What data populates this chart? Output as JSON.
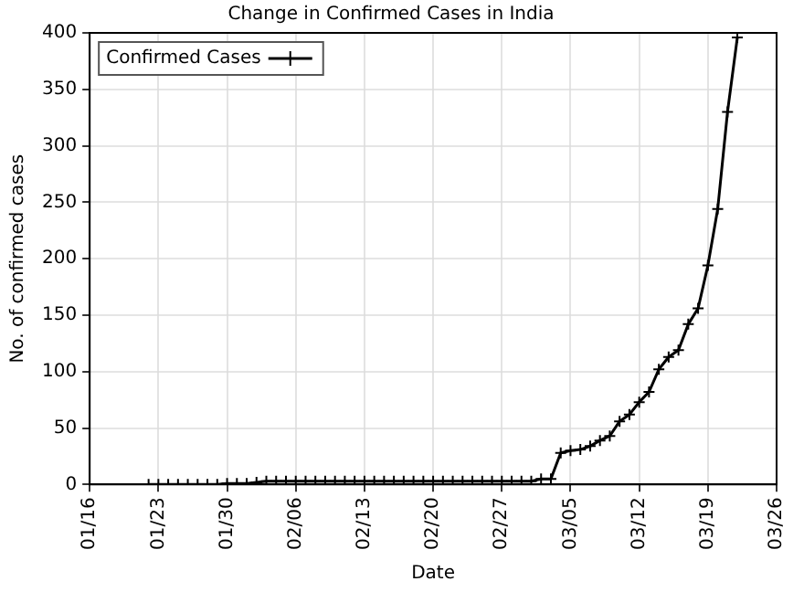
{
  "chart_data": {
    "type": "line",
    "title": "Change in Confirmed Cases in India",
    "xlabel": "Date",
    "ylabel": "No. of confirmed cases",
    "x": [
      "--01-22",
      "--01-23",
      "--01-24",
      "--01-25",
      "--01-26",
      "--01-27",
      "--01-28",
      "--01-29",
      "--01-30",
      "--01-31",
      "--02-01",
      "--02-02",
      "--02-03",
      "--02-04",
      "--02-05",
      "--02-06",
      "--02-07",
      "--02-08",
      "--02-09",
      "--02-10",
      "--02-11",
      "--02-12",
      "--02-13",
      "--02-14",
      "--02-15",
      "--02-16",
      "--02-17",
      "--02-18",
      "--02-19",
      "--02-20",
      "--02-21",
      "--02-22",
      "--02-23",
      "--02-24",
      "--02-25",
      "--02-26",
      "--02-27",
      "--02-28",
      "--02-29",
      "--03-01",
      "--03-02",
      "--03-03",
      "--03-04",
      "--03-05",
      "--03-06",
      "--03-07",
      "--03-08",
      "--03-09",
      "--03-10",
      "--03-11",
      "--03-12",
      "--03-13",
      "--03-14",
      "--03-15",
      "--03-16",
      "--03-17",
      "--03-18",
      "--03-19",
      "--03-20",
      "--03-21",
      "--03-22"
    ],
    "series": [
      {
        "name": "Confirmed Cases",
        "color": "#000000",
        "values": [
          0,
          0,
          0,
          0,
          0,
          0,
          0,
          0,
          1,
          1,
          1,
          2,
          3,
          3,
          3,
          3,
          3,
          3,
          3,
          3,
          3,
          3,
          3,
          3,
          3,
          3,
          3,
          3,
          3,
          3,
          3,
          3,
          3,
          3,
          3,
          3,
          3,
          3,
          3,
          3,
          5,
          5,
          28,
          30,
          31,
          34,
          39,
          43,
          56,
          62,
          73,
          82,
          102,
          113,
          119,
          142,
          156,
          194,
          244,
          330,
          396
        ]
      }
    ],
    "xlim": [
      "--01-16",
      "--03-26"
    ],
    "xticks": [
      {
        "value": "--01-16",
        "label": "01/16"
      },
      {
        "value": "--01-23",
        "label": "01/23"
      },
      {
        "value": "--01-30",
        "label": "01/30"
      },
      {
        "value": "--02-06",
        "label": "02/06"
      },
      {
        "value": "--02-13",
        "label": "02/13"
      },
      {
        "value": "--02-20",
        "label": "02/20"
      },
      {
        "value": "--02-27",
        "label": "02/27"
      },
      {
        "value": "--03-05",
        "label": "03/05"
      },
      {
        "value": "--03-12",
        "label": "03/12"
      },
      {
        "value": "--03-19",
        "label": "03/19"
      },
      {
        "value": "--03-26",
        "label": "03/26"
      }
    ],
    "ylim": [
      0,
      400
    ],
    "yticks": [
      0,
      50,
      100,
      150,
      200,
      250,
      300,
      350,
      400
    ],
    "grid": true,
    "legend": "top left",
    "marker": "cross",
    "line_style": "solid"
  }
}
